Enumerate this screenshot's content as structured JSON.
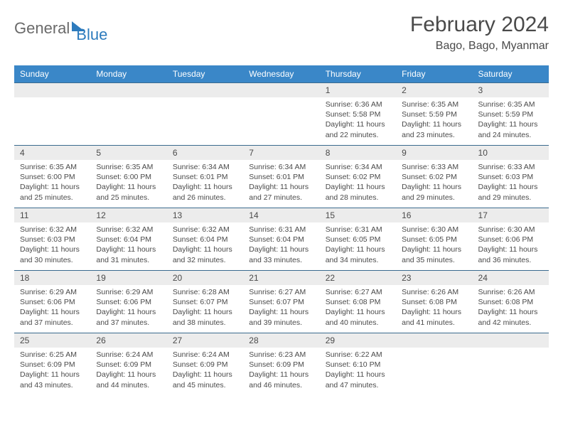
{
  "logo": {
    "part1": "General",
    "part2": "Blue"
  },
  "title": "February 2024",
  "location": "Bago, Bago, Myanmar",
  "header_color": "#3a87c8",
  "border_color": "#3a6a8e",
  "stripe_color": "#ececec",
  "text_color": "#4a4a4a",
  "columns": [
    "Sunday",
    "Monday",
    "Tuesday",
    "Wednesday",
    "Thursday",
    "Friday",
    "Saturday"
  ],
  "weeks": [
    [
      null,
      null,
      null,
      null,
      {
        "n": "1",
        "sr": "6:36 AM",
        "ss": "5:58 PM",
        "dl": "11 hours and 22 minutes."
      },
      {
        "n": "2",
        "sr": "6:35 AM",
        "ss": "5:59 PM",
        "dl": "11 hours and 23 minutes."
      },
      {
        "n": "3",
        "sr": "6:35 AM",
        "ss": "5:59 PM",
        "dl": "11 hours and 24 minutes."
      }
    ],
    [
      {
        "n": "4",
        "sr": "6:35 AM",
        "ss": "6:00 PM",
        "dl": "11 hours and 25 minutes."
      },
      {
        "n": "5",
        "sr": "6:35 AM",
        "ss": "6:00 PM",
        "dl": "11 hours and 25 minutes."
      },
      {
        "n": "6",
        "sr": "6:34 AM",
        "ss": "6:01 PM",
        "dl": "11 hours and 26 minutes."
      },
      {
        "n": "7",
        "sr": "6:34 AM",
        "ss": "6:01 PM",
        "dl": "11 hours and 27 minutes."
      },
      {
        "n": "8",
        "sr": "6:34 AM",
        "ss": "6:02 PM",
        "dl": "11 hours and 28 minutes."
      },
      {
        "n": "9",
        "sr": "6:33 AM",
        "ss": "6:02 PM",
        "dl": "11 hours and 29 minutes."
      },
      {
        "n": "10",
        "sr": "6:33 AM",
        "ss": "6:03 PM",
        "dl": "11 hours and 29 minutes."
      }
    ],
    [
      {
        "n": "11",
        "sr": "6:32 AM",
        "ss": "6:03 PM",
        "dl": "11 hours and 30 minutes."
      },
      {
        "n": "12",
        "sr": "6:32 AM",
        "ss": "6:04 PM",
        "dl": "11 hours and 31 minutes."
      },
      {
        "n": "13",
        "sr": "6:32 AM",
        "ss": "6:04 PM",
        "dl": "11 hours and 32 minutes."
      },
      {
        "n": "14",
        "sr": "6:31 AM",
        "ss": "6:04 PM",
        "dl": "11 hours and 33 minutes."
      },
      {
        "n": "15",
        "sr": "6:31 AM",
        "ss": "6:05 PM",
        "dl": "11 hours and 34 minutes."
      },
      {
        "n": "16",
        "sr": "6:30 AM",
        "ss": "6:05 PM",
        "dl": "11 hours and 35 minutes."
      },
      {
        "n": "17",
        "sr": "6:30 AM",
        "ss": "6:06 PM",
        "dl": "11 hours and 36 minutes."
      }
    ],
    [
      {
        "n": "18",
        "sr": "6:29 AM",
        "ss": "6:06 PM",
        "dl": "11 hours and 37 minutes."
      },
      {
        "n": "19",
        "sr": "6:29 AM",
        "ss": "6:06 PM",
        "dl": "11 hours and 37 minutes."
      },
      {
        "n": "20",
        "sr": "6:28 AM",
        "ss": "6:07 PM",
        "dl": "11 hours and 38 minutes."
      },
      {
        "n": "21",
        "sr": "6:27 AM",
        "ss": "6:07 PM",
        "dl": "11 hours and 39 minutes."
      },
      {
        "n": "22",
        "sr": "6:27 AM",
        "ss": "6:08 PM",
        "dl": "11 hours and 40 minutes."
      },
      {
        "n": "23",
        "sr": "6:26 AM",
        "ss": "6:08 PM",
        "dl": "11 hours and 41 minutes."
      },
      {
        "n": "24",
        "sr": "6:26 AM",
        "ss": "6:08 PM",
        "dl": "11 hours and 42 minutes."
      }
    ],
    [
      {
        "n": "25",
        "sr": "6:25 AM",
        "ss": "6:09 PM",
        "dl": "11 hours and 43 minutes."
      },
      {
        "n": "26",
        "sr": "6:24 AM",
        "ss": "6:09 PM",
        "dl": "11 hours and 44 minutes."
      },
      {
        "n": "27",
        "sr": "6:24 AM",
        "ss": "6:09 PM",
        "dl": "11 hours and 45 minutes."
      },
      {
        "n": "28",
        "sr": "6:23 AM",
        "ss": "6:09 PM",
        "dl": "11 hours and 46 minutes."
      },
      {
        "n": "29",
        "sr": "6:22 AM",
        "ss": "6:10 PM",
        "dl": "11 hours and 47 minutes."
      },
      null,
      null
    ]
  ],
  "labels": {
    "sunrise": "Sunrise:",
    "sunset": "Sunset:",
    "daylight": "Daylight:"
  }
}
